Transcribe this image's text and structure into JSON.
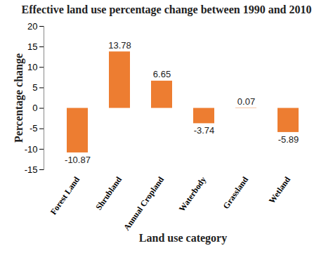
{
  "chart_data": {
    "type": "bar",
    "title": "Effective land use percentage change between 1990 and 2010",
    "x_label": "Land use category",
    "y_label": "Percentage change",
    "categories": [
      "Forest Land",
      "Shrubland",
      "Annual Cropland",
      "Waterbody",
      "Grassland",
      "Wetland"
    ],
    "values": [
      -10.87,
      13.78,
      6.65,
      -3.74,
      0.07,
      -5.89
    ],
    "color": "#ED7D31",
    "ylim": [
      -15,
      20
    ],
    "yticks": [
      -15,
      -10,
      -5,
      0,
      5,
      10,
      15,
      20
    ],
    "grid": false,
    "data_labels": true
  }
}
